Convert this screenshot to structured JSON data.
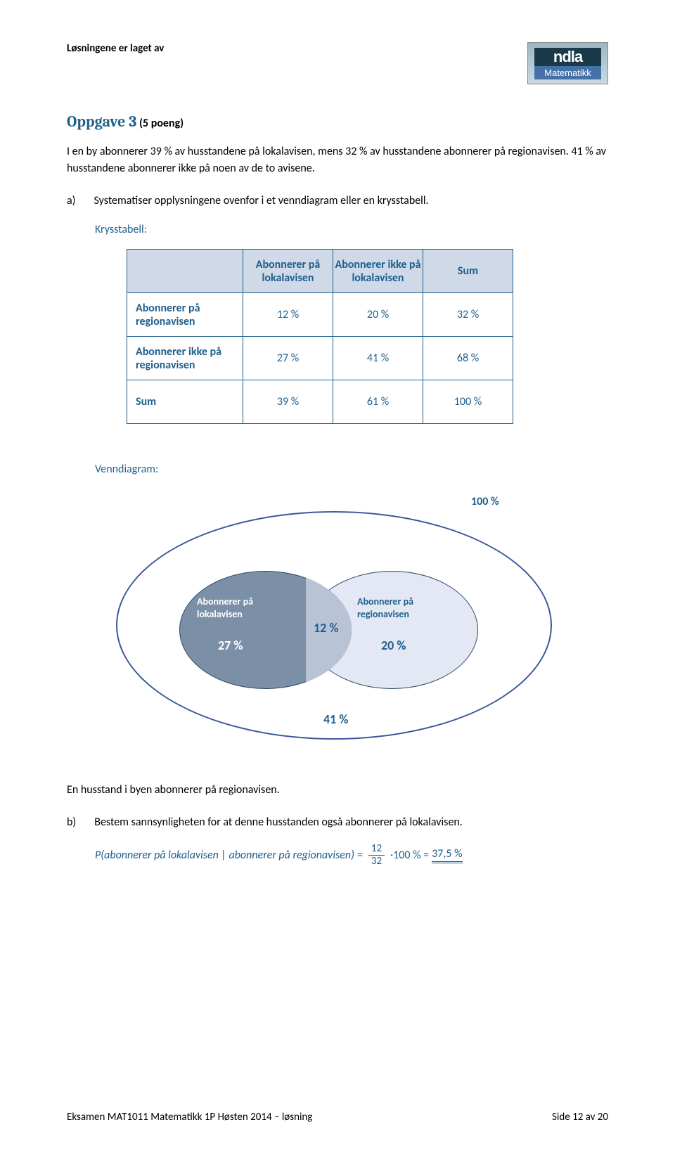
{
  "header": {
    "text": "Løsningene er laget av",
    "logo_top": "ndla",
    "logo_bottom": "Matematikk"
  },
  "task": {
    "title": "Oppgave 3",
    "points": "(5 poeng)"
  },
  "intro_text": "I en by abonnerer 39 % av husstandene på lokalavisen, mens 32 % av husstandene abonnerer på regionavisen. 41 % av husstandene abonnerer ikke på noen av de to avisene.",
  "part_a": {
    "marker": "a)",
    "text": "Systematiser opplysningene ovenfor i et venndiagram eller en krysstabell."
  },
  "krysstabell": {
    "label": "Krysstabell:",
    "col_head_1": "Abonnerer på lokalavisen",
    "col_head_2": "Abonnerer ikke på lokalavisen",
    "col_head_3": "Sum",
    "row_head_1": "Abonnerer på regionavisen",
    "row_head_2": "Abonnerer ikke på regionavisen",
    "row_head_3": "Sum",
    "cells": {
      "r1c1": "12 %",
      "r1c2": "20 %",
      "r1c3": "32 %",
      "r2c1": "27 %",
      "r2c2": "41 %",
      "r2c3": "68 %",
      "r3c1": "39 %",
      "r3c2": "61 %",
      "r3c3": "100 %"
    },
    "header_bg": "#cfd9e8",
    "border_color": "#1f5f8b",
    "text_color": "#1f5f8b"
  },
  "venn": {
    "label": "Venndiagram:",
    "universe_pct": "100 %",
    "left_title": "Abonnerer på lokalavisen",
    "left_pct": "27 %",
    "overlap_pct": "12 %",
    "right_title": "Abonnerer på regionavisen",
    "right_pct": "20 %",
    "outside_pct": "41 %",
    "left_fill": "#7b8fa6",
    "right_fill": "#e4e8f4",
    "outer_border": "#3b5998"
  },
  "cond_text": "En husstand i byen abonnerer på regionavisen.",
  "part_b": {
    "marker": "b)",
    "text": "Bestem sannsynligheten for at denne husstanden også abonnerer på lokalavisen."
  },
  "formula": {
    "lhs": "P(abonnerer på lokalavisen | abonnerer på regionavisen)",
    "eq1": "=",
    "num": "12",
    "den": "32",
    "mid": "·100 % =",
    "result": "37,5 %"
  },
  "footer": {
    "left": "Eksamen MAT1011 Matematikk 1P Høsten 2014 – løsning",
    "right": "Side 12 av 20"
  },
  "colors": {
    "accent": "#1f5f8b",
    "body": "#000000",
    "bg": "#ffffff"
  }
}
